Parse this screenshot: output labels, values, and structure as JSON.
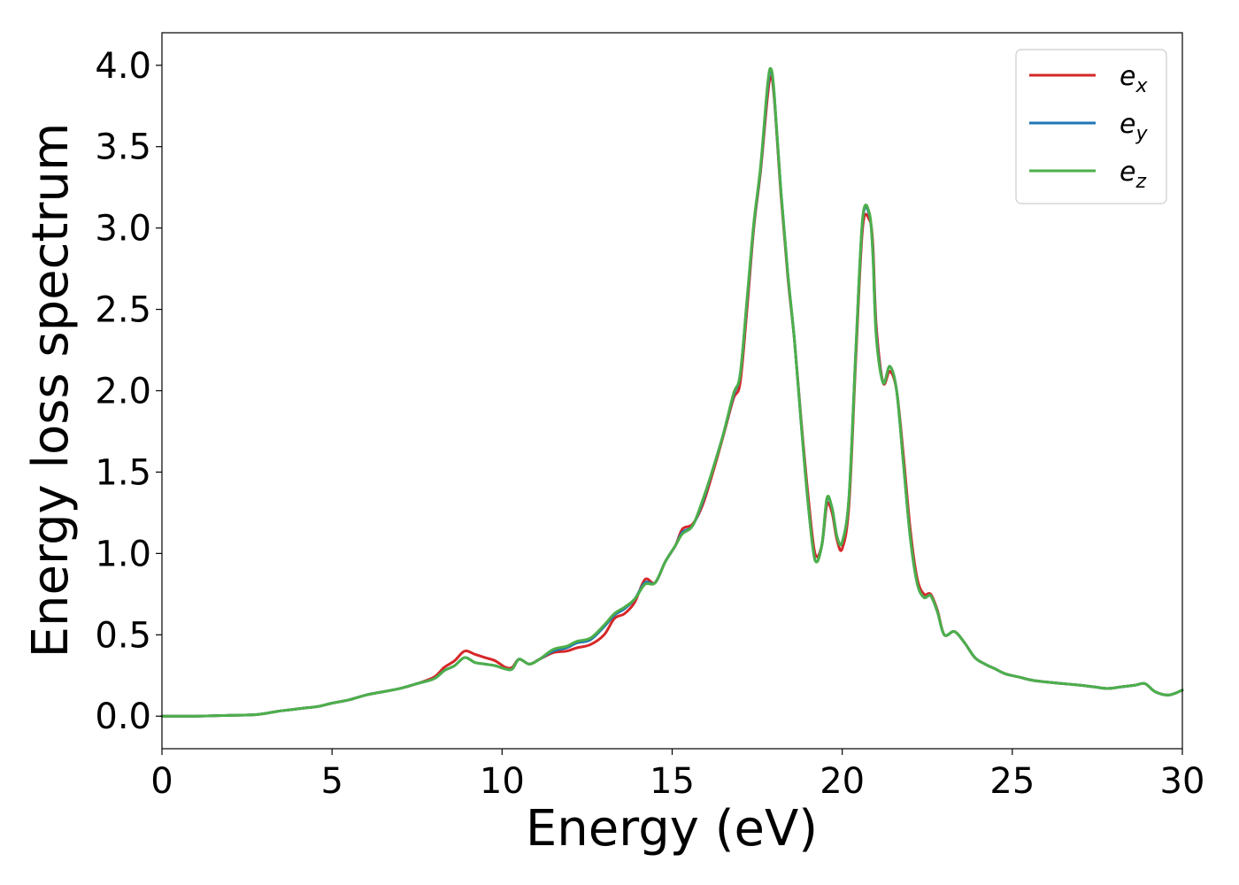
{
  "chart_data": {
    "type": "line",
    "xlabel": "Energy (eV)",
    "ylabel": "Energy loss spectrum",
    "xlim": [
      0,
      30
    ],
    "ylim": [
      -0.2,
      4.2
    ],
    "xticks": [
      0,
      5,
      10,
      15,
      20,
      25,
      30
    ],
    "xtick_labels": [
      "0",
      "5",
      "10",
      "15",
      "20",
      "25",
      "30"
    ],
    "yticks": [
      0.0,
      0.5,
      1.0,
      1.5,
      2.0,
      2.5,
      3.0,
      3.5,
      4.0
    ],
    "ytick_labels": [
      "0.0",
      "0.5",
      "1.0",
      "1.5",
      "2.0",
      "2.5",
      "3.0",
      "3.5",
      "4.0"
    ],
    "grid": false,
    "legend_position": "top-right",
    "series": [
      {
        "name": "e_x",
        "label_main": "e",
        "label_sub": "x",
        "color": "#d62728",
        "x": [
          0,
          1,
          2,
          2.8,
          3.4,
          3.8,
          4.2,
          4.6,
          5,
          5.5,
          6,
          6.5,
          7,
          7.5,
          8,
          8.3,
          8.6,
          8.9,
          9.2,
          9.5,
          9.8,
          10.1,
          10.3,
          10.5,
          10.8,
          11.1,
          11.5,
          11.9,
          12.2,
          12.6,
          13,
          13.3,
          13.6,
          13.9,
          14.2,
          14.5,
          14.8,
          15.1,
          15.3,
          15.6,
          15.9,
          16.2,
          16.5,
          16.8,
          17.0,
          17.2,
          17.4,
          17.6,
          17.8,
          17.9,
          18.0,
          18.2,
          18.4,
          18.6,
          18.8,
          19.0,
          19.2,
          19.4,
          19.55,
          19.7,
          19.85,
          20.0,
          20.2,
          20.4,
          20.6,
          20.8,
          20.9,
          21.0,
          21.2,
          21.4,
          21.6,
          21.8,
          22.0,
          22.2,
          22.4,
          22.6,
          22.8,
          23.0,
          23.3,
          23.6,
          23.9,
          24.2,
          24.5,
          24.8,
          25.2,
          25.6,
          26,
          26.5,
          27,
          27.4,
          27.8,
          28.2,
          28.6,
          28.9,
          29.2,
          29.6,
          30
        ],
        "y": [
          0.0,
          0.0,
          0.005,
          0.01,
          0.03,
          0.04,
          0.05,
          0.06,
          0.08,
          0.1,
          0.13,
          0.15,
          0.17,
          0.2,
          0.24,
          0.3,
          0.34,
          0.4,
          0.38,
          0.36,
          0.34,
          0.3,
          0.3,
          0.35,
          0.32,
          0.35,
          0.39,
          0.4,
          0.42,
          0.44,
          0.5,
          0.6,
          0.63,
          0.7,
          0.84,
          0.82,
          0.95,
          1.05,
          1.15,
          1.18,
          1.3,
          1.5,
          1.72,
          1.95,
          2.05,
          2.5,
          3.0,
          3.35,
          3.8,
          3.93,
          3.8,
          3.2,
          2.7,
          2.3,
          1.8,
          1.35,
          1.0,
          1.05,
          1.3,
          1.25,
          1.08,
          1.03,
          1.3,
          2.2,
          3.0,
          3.05,
          2.9,
          2.4,
          2.05,
          2.12,
          2.0,
          1.6,
          1.15,
          0.85,
          0.75,
          0.75,
          0.65,
          0.5,
          0.52,
          0.45,
          0.36,
          0.32,
          0.29,
          0.26,
          0.24,
          0.22,
          0.21,
          0.2,
          0.19,
          0.18,
          0.17,
          0.18,
          0.19,
          0.2,
          0.15,
          0.13,
          0.16
        ]
      },
      {
        "name": "e_y",
        "label_main": "e",
        "label_sub": "y",
        "color": "#1f77b4",
        "x": [
          0,
          1,
          2,
          2.8,
          3.4,
          3.8,
          4.2,
          4.6,
          5,
          5.5,
          6,
          6.5,
          7,
          7.5,
          8,
          8.3,
          8.6,
          8.9,
          9.2,
          9.5,
          9.8,
          10.1,
          10.3,
          10.5,
          10.8,
          11.1,
          11.5,
          11.9,
          12.2,
          12.6,
          13,
          13.3,
          13.6,
          13.9,
          14.2,
          14.5,
          14.8,
          15.1,
          15.3,
          15.6,
          15.9,
          16.2,
          16.5,
          16.8,
          17.0,
          17.2,
          17.4,
          17.6,
          17.8,
          17.9,
          18.0,
          18.2,
          18.4,
          18.6,
          18.8,
          19.0,
          19.2,
          19.4,
          19.55,
          19.7,
          19.85,
          20.0,
          20.2,
          20.4,
          20.6,
          20.8,
          20.9,
          21.0,
          21.2,
          21.4,
          21.6,
          21.8,
          22.0,
          22.2,
          22.4,
          22.6,
          22.8,
          23.0,
          23.3,
          23.6,
          23.9,
          24.2,
          24.5,
          24.8,
          25.2,
          25.6,
          26,
          26.5,
          27,
          27.4,
          27.8,
          28.2,
          28.6,
          28.9,
          29.2,
          29.6,
          30
        ],
        "y": [
          0.0,
          0.0,
          0.005,
          0.01,
          0.03,
          0.04,
          0.05,
          0.06,
          0.08,
          0.1,
          0.13,
          0.15,
          0.17,
          0.2,
          0.23,
          0.28,
          0.31,
          0.36,
          0.33,
          0.32,
          0.31,
          0.29,
          0.29,
          0.35,
          0.32,
          0.35,
          0.4,
          0.42,
          0.45,
          0.47,
          0.55,
          0.62,
          0.66,
          0.72,
          0.82,
          0.82,
          0.95,
          1.05,
          1.13,
          1.17,
          1.32,
          1.52,
          1.73,
          1.97,
          2.1,
          2.55,
          3.02,
          3.37,
          3.85,
          3.97,
          3.82,
          3.22,
          2.72,
          2.3,
          1.78,
          1.3,
          0.96,
          1.05,
          1.33,
          1.28,
          1.1,
          1.07,
          1.35,
          2.25,
          3.05,
          3.08,
          2.85,
          2.35,
          2.05,
          2.15,
          2.0,
          1.55,
          1.1,
          0.82,
          0.73,
          0.74,
          0.64,
          0.5,
          0.52,
          0.45,
          0.36,
          0.32,
          0.29,
          0.26,
          0.24,
          0.22,
          0.21,
          0.2,
          0.19,
          0.18,
          0.17,
          0.18,
          0.19,
          0.2,
          0.15,
          0.13,
          0.16
        ]
      },
      {
        "name": "e_z",
        "label_main": "e",
        "label_sub": "z",
        "color": "#4daf4a",
        "x": [
          0,
          1,
          2,
          2.8,
          3.4,
          3.8,
          4.2,
          4.6,
          5,
          5.5,
          6,
          6.5,
          7,
          7.5,
          8,
          8.3,
          8.6,
          8.9,
          9.2,
          9.5,
          9.8,
          10.1,
          10.3,
          10.5,
          10.8,
          11.1,
          11.5,
          11.9,
          12.2,
          12.6,
          13,
          13.3,
          13.6,
          13.9,
          14.2,
          14.5,
          14.8,
          15.1,
          15.3,
          15.6,
          15.9,
          16.2,
          16.5,
          16.8,
          17.0,
          17.2,
          17.4,
          17.6,
          17.8,
          17.9,
          18.0,
          18.2,
          18.4,
          18.6,
          18.8,
          19.0,
          19.2,
          19.4,
          19.55,
          19.7,
          19.85,
          20.0,
          20.2,
          20.4,
          20.6,
          20.8,
          20.9,
          21.0,
          21.2,
          21.4,
          21.6,
          21.8,
          22.0,
          22.2,
          22.4,
          22.6,
          22.8,
          23.0,
          23.3,
          23.6,
          23.9,
          24.2,
          24.5,
          24.8,
          25.2,
          25.6,
          26,
          26.5,
          27,
          27.4,
          27.8,
          28.2,
          28.6,
          28.9,
          29.2,
          29.6,
          30
        ],
        "y": [
          0.0,
          0.0,
          0.005,
          0.01,
          0.03,
          0.04,
          0.05,
          0.06,
          0.08,
          0.1,
          0.13,
          0.15,
          0.17,
          0.2,
          0.23,
          0.28,
          0.31,
          0.36,
          0.33,
          0.32,
          0.31,
          0.29,
          0.29,
          0.35,
          0.32,
          0.35,
          0.41,
          0.43,
          0.46,
          0.48,
          0.56,
          0.63,
          0.67,
          0.72,
          0.81,
          0.82,
          0.95,
          1.05,
          1.12,
          1.17,
          1.33,
          1.52,
          1.73,
          1.98,
          2.1,
          2.56,
          3.03,
          3.38,
          3.87,
          3.98,
          3.83,
          3.22,
          2.72,
          2.3,
          1.78,
          1.3,
          0.96,
          1.05,
          1.34,
          1.28,
          1.1,
          1.07,
          1.35,
          2.25,
          3.06,
          3.09,
          2.84,
          2.33,
          2.05,
          2.15,
          2.0,
          1.55,
          1.1,
          0.82,
          0.73,
          0.74,
          0.64,
          0.5,
          0.52,
          0.45,
          0.36,
          0.32,
          0.29,
          0.26,
          0.24,
          0.22,
          0.21,
          0.2,
          0.19,
          0.18,
          0.17,
          0.18,
          0.19,
          0.2,
          0.15,
          0.13,
          0.16
        ]
      }
    ]
  }
}
